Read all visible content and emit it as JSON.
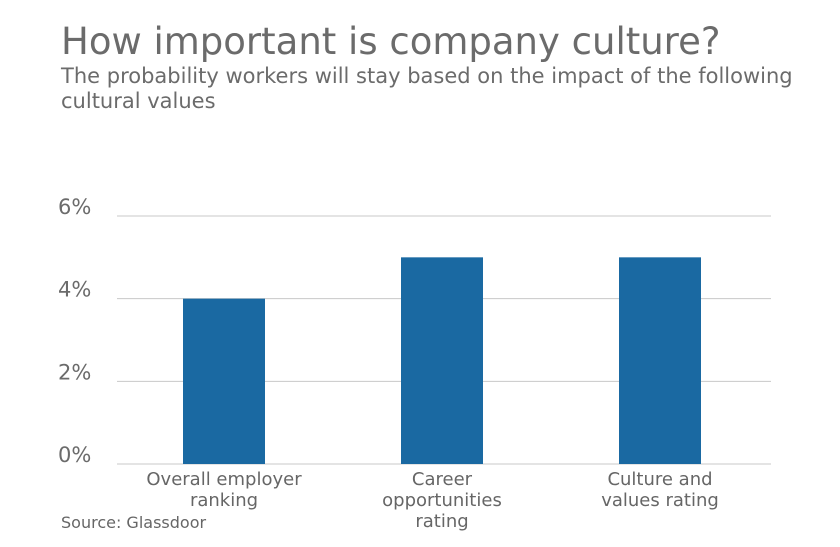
{
  "title": "How important is company culture?",
  "subtitle": "The probability workers will stay based on the impact of the following cultural values",
  "source": "Source: Glassdoor",
  "colors": {
    "bar": "#1a69a2",
    "grid": "#c8c8c8",
    "text": "#6b6b6b"
  },
  "chart_data": {
    "type": "bar",
    "title": "How important is company culture?",
    "subtitle": "The probability workers will stay based on the impact of the following cultural values",
    "categories": [
      [
        "Overall employer",
        "ranking"
      ],
      [
        "Career",
        "opportunities",
        "rating"
      ],
      [
        "Culture and",
        "values rating"
      ]
    ],
    "values": [
      4,
      5,
      5
    ],
    "ylim": [
      0,
      6
    ],
    "yticks": [
      0,
      2,
      4,
      6
    ],
    "ytick_format": "%",
    "xlabel": "",
    "ylabel": "",
    "grid": true,
    "legend": "none"
  }
}
